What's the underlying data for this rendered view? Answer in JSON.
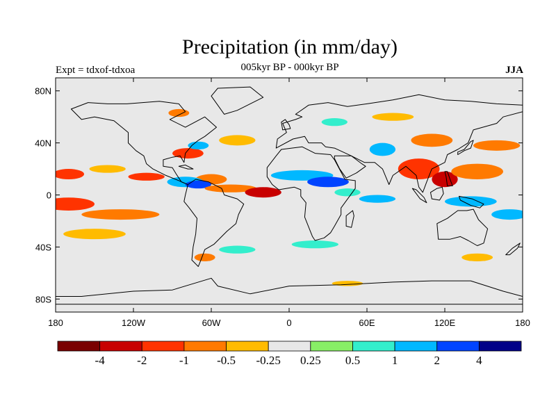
{
  "title": "Precipitation (in mm/day)",
  "left_label": "Expt = tdxof-tdxoa",
  "center_label": "005kyr BP - 000kyr BP",
  "right_label": "JJA",
  "lon_ticks": [
    {
      "lon": -180,
      "label": "180"
    },
    {
      "lon": -120,
      "label": "120W"
    },
    {
      "lon": -60,
      "label": "60W"
    },
    {
      "lon": 0,
      "label": "0"
    },
    {
      "lon": 60,
      "label": "60E"
    },
    {
      "lon": 120,
      "label": "120E"
    },
    {
      "lon": 180,
      "label": "180"
    }
  ],
  "lat_ticks": [
    {
      "lat": 80,
      "label": "80N"
    },
    {
      "lat": 40,
      "label": "40N"
    },
    {
      "lat": 0,
      "label": "0"
    },
    {
      "lat": -40,
      "label": "40S"
    },
    {
      "lat": -80,
      "label": "80S"
    }
  ],
  "colorbar": {
    "colors": [
      "#7a0000",
      "#c80000",
      "#ff3300",
      "#ff7a00",
      "#ffbb00",
      "#e8e8e8",
      "#88ee66",
      "#33eecc",
      "#00b8ff",
      "#0044ff",
      "#000088"
    ],
    "labels": [
      "-4",
      "-2",
      "-1",
      "-0.5",
      "-0.25",
      "0.25",
      "0.5",
      "1",
      "2",
      "4"
    ]
  },
  "anomaly_regions": [
    {
      "lat": 20,
      "lon": -140,
      "rx": 14,
      "ry": 3,
      "value": -0.3
    },
    {
      "lat": 16,
      "lon": -170,
      "rx": 12,
      "ry": 4,
      "value": -1.5
    },
    {
      "lat": 14,
      "lon": -110,
      "rx": 14,
      "ry": 3,
      "value": -2
    },
    {
      "lat": 12,
      "lon": -60,
      "rx": 12,
      "ry": 4,
      "value": -1
    },
    {
      "lat": 10,
      "lon": -80,
      "rx": 14,
      "ry": 4,
      "value": 1
    },
    {
      "lat": 8,
      "lon": -70,
      "rx": 10,
      "ry": 3,
      "value": 2
    },
    {
      "lat": 32,
      "lon": -78,
      "rx": 12,
      "ry": 4,
      "value": -1.5
    },
    {
      "lat": 38,
      "lon": -70,
      "rx": 8,
      "ry": 3,
      "value": 1
    },
    {
      "lat": 42,
      "lon": -40,
      "rx": 14,
      "ry": 4,
      "value": -0.3
    },
    {
      "lat": -7,
      "lon": -170,
      "rx": 20,
      "ry": 5,
      "value": -2
    },
    {
      "lat": -15,
      "lon": -130,
      "rx": 30,
      "ry": 4,
      "value": -0.7
    },
    {
      "lat": -30,
      "lon": -150,
      "rx": 24,
      "ry": 4,
      "value": -0.3
    },
    {
      "lat": 5,
      "lon": -45,
      "rx": 20,
      "ry": 3,
      "value": -1
    },
    {
      "lat": 2,
      "lon": -20,
      "rx": 14,
      "ry": 4,
      "value": -3
    },
    {
      "lat": 15,
      "lon": 10,
      "rx": 24,
      "ry": 4,
      "value": 1
    },
    {
      "lat": 10,
      "lon": 30,
      "rx": 16,
      "ry": 4,
      "value": 2
    },
    {
      "lat": 2,
      "lon": 45,
      "rx": 10,
      "ry": 3,
      "value": 0.5
    },
    {
      "lat": -3,
      "lon": 68,
      "rx": 14,
      "ry": 3,
      "value": 1
    },
    {
      "lat": 35,
      "lon": 72,
      "rx": 10,
      "ry": 5,
      "value": 1.5
    },
    {
      "lat": 20,
      "lon": 100,
      "rx": 16,
      "ry": 8,
      "value": -2
    },
    {
      "lat": 12,
      "lon": 120,
      "rx": 10,
      "ry": 6,
      "value": -4
    },
    {
      "lat": 18,
      "lon": 145,
      "rx": 20,
      "ry": 6,
      "value": -1
    },
    {
      "lat": 42,
      "lon": 110,
      "rx": 16,
      "ry": 5,
      "value": -1
    },
    {
      "lat": 38,
      "lon": 160,
      "rx": 18,
      "ry": 4,
      "value": -0.7
    },
    {
      "lat": -5,
      "lon": 140,
      "rx": 20,
      "ry": 4,
      "value": 1.5
    },
    {
      "lat": -15,
      "lon": 170,
      "rx": 14,
      "ry": 4,
      "value": 1
    },
    {
      "lat": -38,
      "lon": 20,
      "rx": 18,
      "ry": 3,
      "value": 0.5
    },
    {
      "lat": -42,
      "lon": -40,
      "rx": 14,
      "ry": 3,
      "value": 0.5
    },
    {
      "lat": -48,
      "lon": -65,
      "rx": 8,
      "ry": 3,
      "value": -1
    },
    {
      "lat": -48,
      "lon": 145,
      "rx": 12,
      "ry": 3,
      "value": -0.3
    },
    {
      "lat": 60,
      "lon": 80,
      "rx": 16,
      "ry": 3,
      "value": -0.3
    },
    {
      "lat": 63,
      "lon": -85,
      "rx": 8,
      "ry": 3,
      "value": -0.7
    },
    {
      "lat": 56,
      "lon": 35,
      "rx": 10,
      "ry": 3,
      "value": 0.5
    },
    {
      "lat": -68,
      "lon": 45,
      "rx": 12,
      "ry": 2,
      "value": -0.3
    }
  ],
  "continents": [
    {
      "name": "North America",
      "points": [
        [
          -168,
          66
        ],
        [
          -155,
          71
        ],
        [
          -140,
          70
        ],
        [
          -125,
          70
        ],
        [
          -100,
          72
        ],
        [
          -85,
          70
        ],
        [
          -80,
          64
        ],
        [
          -92,
          58
        ],
        [
          -80,
          52
        ],
        [
          -65,
          60
        ],
        [
          -56,
          52
        ],
        [
          -65,
          45
        ],
        [
          -70,
          42
        ],
        [
          -75,
          38
        ],
        [
          -80,
          32
        ],
        [
          -81,
          25
        ],
        [
          -84,
          30
        ],
        [
          -90,
          29
        ],
        [
          -97,
          27
        ],
        [
          -97,
          22
        ],
        [
          -90,
          21
        ],
        [
          -87,
          16
        ],
        [
          -83,
          10
        ],
        [
          -78,
          8
        ],
        [
          -85,
          11
        ],
        [
          -95,
          15
        ],
        [
          -105,
          20
        ],
        [
          -110,
          24
        ],
        [
          -112,
          30
        ],
        [
          -118,
          34
        ],
        [
          -124,
          40
        ],
        [
          -124,
          48
        ],
        [
          -135,
          57
        ],
        [
          -150,
          60
        ],
        [
          -160,
          58
        ],
        [
          -168,
          66
        ]
      ]
    },
    {
      "name": "Greenland",
      "points": [
        [
          -55,
          82
        ],
        [
          -30,
          83
        ],
        [
          -20,
          75
        ],
        [
          -40,
          65
        ],
        [
          -50,
          62
        ],
        [
          -60,
          76
        ],
        [
          -55,
          82
        ]
      ]
    },
    {
      "name": "South America",
      "points": [
        [
          -78,
          8
        ],
        [
          -72,
          12
        ],
        [
          -62,
          10
        ],
        [
          -52,
          5
        ],
        [
          -50,
          0
        ],
        [
          -40,
          -3
        ],
        [
          -35,
          -7
        ],
        [
          -39,
          -15
        ],
        [
          -41,
          -22
        ],
        [
          -48,
          -28
        ],
        [
          -55,
          -35
        ],
        [
          -58,
          -38
        ],
        [
          -65,
          -42
        ],
        [
          -68,
          -50
        ],
        [
          -70,
          -55
        ],
        [
          -75,
          -50
        ],
        [
          -74,
          -40
        ],
        [
          -72,
          -30
        ],
        [
          -71,
          -18
        ],
        [
          -77,
          -10
        ],
        [
          -81,
          -5
        ],
        [
          -80,
          0
        ],
        [
          -78,
          8
        ]
      ]
    },
    {
      "name": "Africa",
      "points": [
        [
          -17,
          21
        ],
        [
          -10,
          30
        ],
        [
          -6,
          35
        ],
        [
          10,
          37
        ],
        [
          20,
          32
        ],
        [
          32,
          31
        ],
        [
          35,
          27
        ],
        [
          43,
          12
        ],
        [
          51,
          11
        ],
        [
          51,
          5
        ],
        [
          40,
          -10
        ],
        [
          40,
          -15
        ],
        [
          35,
          -24
        ],
        [
          32,
          -29
        ],
        [
          27,
          -33
        ],
        [
          20,
          -35
        ],
        [
          18,
          -32
        ],
        [
          12,
          -17
        ],
        [
          13,
          -6
        ],
        [
          9,
          -1
        ],
        [
          9,
          4
        ],
        [
          4,
          6
        ],
        [
          -8,
          4
        ],
        [
          -13,
          8
        ],
        [
          -17,
          14
        ],
        [
          -17,
          21
        ]
      ]
    },
    {
      "name": "Eurasia",
      "points": [
        [
          -10,
          36
        ],
        [
          -9,
          43
        ],
        [
          -2,
          48
        ],
        [
          -5,
          55
        ],
        [
          5,
          58
        ],
        [
          10,
          60
        ],
        [
          5,
          62
        ],
        [
          15,
          69
        ],
        [
          30,
          71
        ],
        [
          45,
          68
        ],
        [
          60,
          70
        ],
        [
          80,
          73
        ],
        [
          100,
          77
        ],
        [
          120,
          73
        ],
        [
          140,
          72
        ],
        [
          160,
          70
        ],
        [
          180,
          69
        ],
        [
          180,
          64
        ],
        [
          165,
          60
        ],
        [
          160,
          55
        ],
        [
          142,
          50
        ],
        [
          138,
          40
        ],
        [
          130,
          35
        ],
        [
          122,
          31
        ],
        [
          120,
          25
        ],
        [
          110,
          20
        ],
        [
          106,
          10
        ],
        [
          103,
          2
        ],
        [
          100,
          6
        ],
        [
          98,
          15
        ],
        [
          90,
          22
        ],
        [
          80,
          15
        ],
        [
          77,
          8
        ],
        [
          72,
          20
        ],
        [
          66,
          25
        ],
        [
          58,
          25
        ],
        [
          52,
          28
        ],
        [
          48,
          30
        ],
        [
          35,
          36
        ],
        [
          28,
          37
        ],
        [
          25,
          40
        ],
        [
          15,
          40
        ],
        [
          12,
          45
        ],
        [
          3,
          43
        ],
        [
          -10,
          36
        ]
      ]
    },
    {
      "name": "Arabia",
      "points": [
        [
          35,
          30
        ],
        [
          48,
          30
        ],
        [
          56,
          24
        ],
        [
          59,
          22
        ],
        [
          52,
          17
        ],
        [
          44,
          13
        ],
        [
          39,
          20
        ],
        [
          35,
          28
        ],
        [
          35,
          30
        ]
      ]
    },
    {
      "name": "Australia",
      "points": [
        [
          114,
          -22
        ],
        [
          122,
          -18
        ],
        [
          130,
          -12
        ],
        [
          137,
          -12
        ],
        [
          142,
          -11
        ],
        [
          146,
          -19
        ],
        [
          153,
          -26
        ],
        [
          150,
          -37
        ],
        [
          145,
          -39
        ],
        [
          138,
          -35
        ],
        [
          132,
          -32
        ],
        [
          124,
          -34
        ],
        [
          115,
          -34
        ],
        [
          114,
          -22
        ]
      ]
    },
    {
      "name": "Antarctica",
      "points": [
        [
          -180,
          -84
        ],
        [
          -180,
          -78
        ],
        [
          -160,
          -78
        ],
        [
          -120,
          -74
        ],
        [
          -90,
          -73
        ],
        [
          -60,
          -64
        ],
        [
          -55,
          -70
        ],
        [
          -30,
          -76
        ],
        [
          0,
          -70
        ],
        [
          40,
          -69
        ],
        [
          80,
          -67
        ],
        [
          110,
          -66
        ],
        [
          140,
          -66
        ],
        [
          165,
          -74
        ],
        [
          180,
          -78
        ],
        [
          180,
          -84
        ],
        [
          -180,
          -84
        ]
      ]
    },
    {
      "name": "Borneo",
      "points": [
        [
          109,
          2
        ],
        [
          114,
          5
        ],
        [
          118,
          6
        ],
        [
          119,
          1
        ],
        [
          116,
          -4
        ],
        [
          110,
          -3
        ],
        [
          109,
          2
        ]
      ]
    },
    {
      "name": "Sumatra",
      "points": [
        [
          95,
          5
        ],
        [
          98,
          4
        ],
        [
          104,
          -2
        ],
        [
          106,
          -6
        ],
        [
          101,
          -3
        ],
        [
          95,
          5
        ]
      ]
    },
    {
      "name": "New Guinea",
      "points": [
        [
          131,
          -1
        ],
        [
          141,
          -3
        ],
        [
          150,
          -7
        ],
        [
          147,
          -10
        ],
        [
          140,
          -8
        ],
        [
          132,
          -4
        ],
        [
          131,
          -1
        ]
      ]
    },
    {
      "name": "Japan",
      "points": [
        [
          130,
          31
        ],
        [
          135,
          34
        ],
        [
          140,
          36
        ],
        [
          142,
          42
        ],
        [
          140,
          41
        ],
        [
          135,
          35
        ],
        [
          130,
          33
        ],
        [
          130,
          31
        ]
      ]
    },
    {
      "name": "Madagascar",
      "points": [
        [
          44,
          -24
        ],
        [
          48,
          -25
        ],
        [
          50,
          -16
        ],
        [
          49,
          -12
        ],
        [
          44,
          -16
        ],
        [
          44,
          -24
        ]
      ]
    },
    {
      "name": "Great Britain",
      "points": [
        [
          -5,
          50
        ],
        [
          1,
          51
        ],
        [
          0,
          54
        ],
        [
          -3,
          58
        ],
        [
          -6,
          56
        ],
        [
          -5,
          50
        ]
      ]
    },
    {
      "name": "New Zealand",
      "points": [
        [
          167,
          -46
        ],
        [
          172,
          -41
        ],
        [
          178,
          -37
        ],
        [
          176,
          -41
        ],
        [
          170,
          -46
        ],
        [
          167,
          -46
        ]
      ]
    },
    {
      "name": "Cuba",
      "points": [
        [
          -85,
          22
        ],
        [
          -80,
          23
        ],
        [
          -74,
          20
        ],
        [
          -78,
          20
        ],
        [
          -85,
          22
        ]
      ]
    },
    {
      "name": "Philippines",
      "points": [
        [
          120,
          18
        ],
        [
          122,
          18
        ],
        [
          124,
          12
        ],
        [
          126,
          7
        ],
        [
          122,
          7
        ],
        [
          121,
          14
        ],
        [
          120,
          18
        ]
      ]
    }
  ]
}
